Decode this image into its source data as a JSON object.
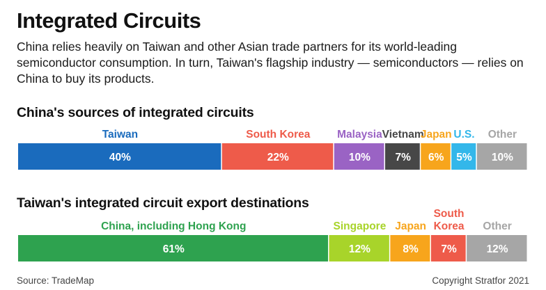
{
  "title": "Integrated Circuits",
  "subtitle": "China relies heavily on Taiwan and other Asian trade partners for its world-leading semiconductor consumption. In turn, Taiwan's flagship industry — semiconductors — relies on China to buy its products.",
  "footer": {
    "source": "Source: TradeMap",
    "copyright": "Copyright Stratfor 2021"
  },
  "chart_data": [
    {
      "type": "bar",
      "orientation": "horizontal-stacked",
      "title": "China's sources of integrated circuits",
      "unit": "%",
      "legend": "labels above segments",
      "grid": false,
      "categories": [
        "Taiwan",
        "South Korea",
        "Malaysia",
        "Vietnam",
        "Japan",
        "U.S.",
        "Other"
      ],
      "values": [
        40,
        22,
        10,
        7,
        6,
        5,
        10
      ],
      "value_labels": [
        "40%",
        "22%",
        "10%",
        "7%",
        "6%",
        "5%",
        "10%"
      ],
      "colors": [
        "#1a6bbd",
        "#ee5b4a",
        "#9a63c4",
        "#474747",
        "#f7a51c",
        "#33b7ea",
        "#a6a6a6"
      ]
    },
    {
      "type": "bar",
      "orientation": "horizontal-stacked",
      "title": "Taiwan's integrated circuit export destinations",
      "unit": "%",
      "legend": "labels above segments",
      "grid": false,
      "categories": [
        "China, including Hong Kong",
        "Singapore",
        "Japan",
        "South Korea",
        "Other"
      ],
      "values": [
        61,
        12,
        8,
        7,
        12
      ],
      "value_labels": [
        "61%",
        "12%",
        "8%",
        "7%",
        "12%"
      ],
      "colors": [
        "#2ea24f",
        "#a8d42a",
        "#f7a51c",
        "#ee5b4a",
        "#a6a6a6"
      ]
    }
  ]
}
